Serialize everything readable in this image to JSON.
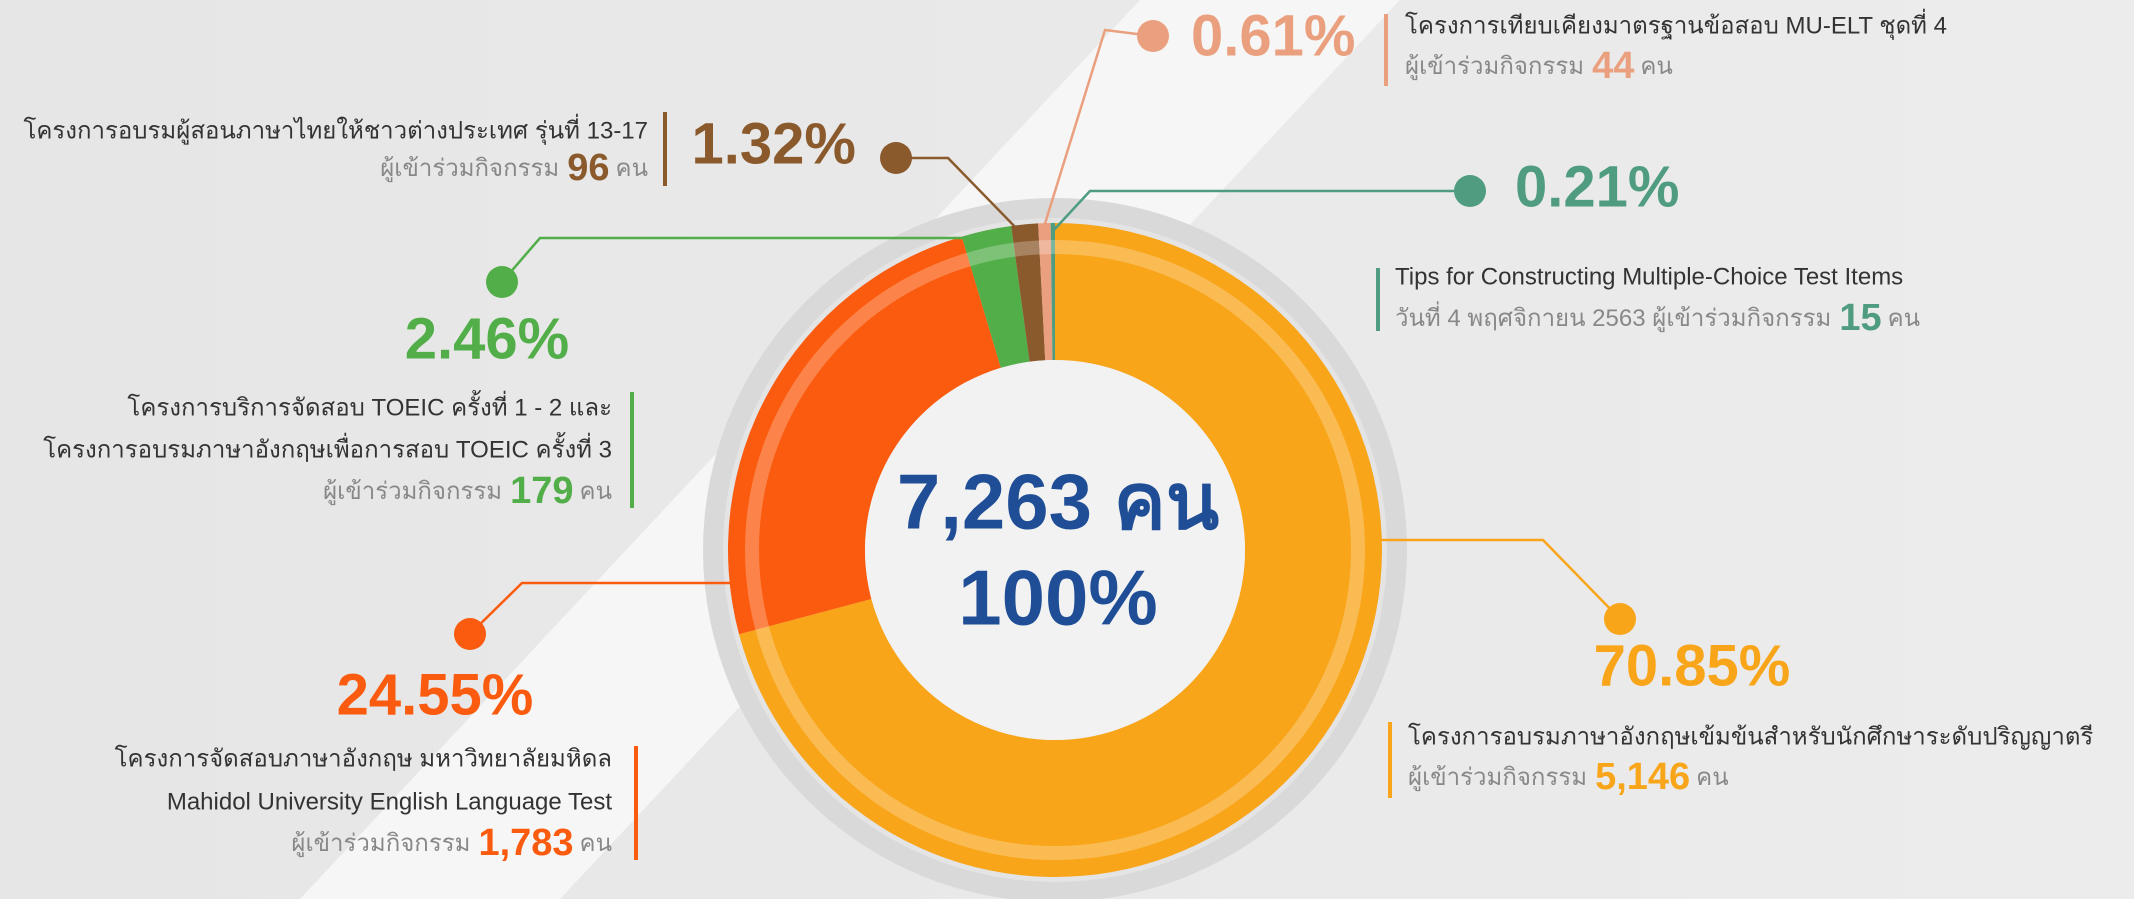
{
  "chart_data": {
    "type": "pie",
    "donut": true,
    "center_lines": [
      "7,263 คน",
      "100%"
    ],
    "categories": [
      [
        "โครงการอบรมภาษาอังกฤษเข้มข้นสำหรับนักศึกษาระดับปริญญาตรี"
      ],
      [
        "โครงการจัดสอบภาษาอังกฤษ มหาวิทยาลัยมหิดล",
        "Mahidol University English Language Test"
      ],
      [
        "โครงการบริการจัดสอบ TOEIC ครั้งที่ 1 - 2 และ",
        "โครงการอบรมภาษาอังกฤษเพื่อการสอบ TOEIC ครั้งที่ 3"
      ],
      [
        "โครงการอบรมผู้สอนภาษาไทยให้ชาวต่างประเทศ รุ่นที่ 13-17"
      ],
      [
        "โครงการเทียบเคียงมาตรฐานข้อสอบ MU-ELT ชุดที่ 4"
      ],
      [
        "Tips for Constructing Multiple-Choice Test Items"
      ]
    ],
    "values": [
      70.85,
      24.55,
      2.46,
      1.32,
      0.61,
      0.21
    ],
    "value_labels": [
      "70.85%",
      "24.55%",
      "2.46%",
      "1.32%",
      "0.61%",
      "0.21%"
    ],
    "counts": [
      5146,
      1783,
      179,
      96,
      44,
      15
    ],
    "count_labels": [
      "5,146",
      "1,783",
      "179",
      "96",
      "44",
      "15"
    ],
    "colors": [
      "#f9a51a",
      "#fb5b0e",
      "#52ae48",
      "#8a5a2c",
      "#eaa07e",
      "#4f9c80"
    ],
    "count_prefix": "ผู้เข้าร่วมกิจกรรม",
    "count_unit": "คน",
    "tips_date": "วันที่ 4 พฤศจิกายน 2563"
  }
}
